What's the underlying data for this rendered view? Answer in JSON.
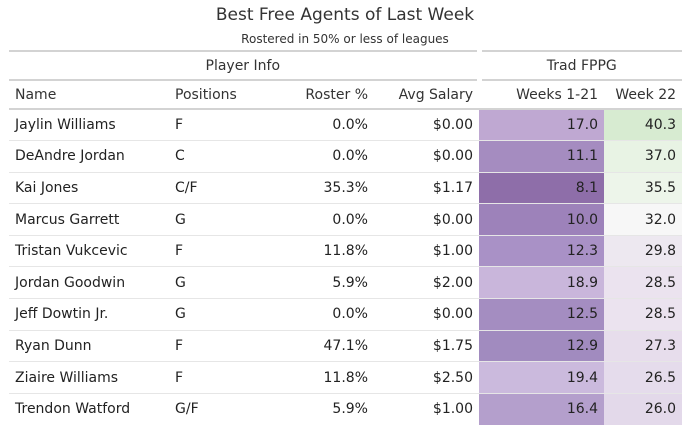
{
  "title": "Best Free Agents of Last Week",
  "subtitle": "Rostered in 50% or less of leagues",
  "spanners": {
    "player_info": "Player Info",
    "trad_fppg": "Trad FPPG"
  },
  "columns": [
    "Name",
    "Positions",
    "Roster %",
    "Avg Salary",
    "Weeks 1-21",
    "Week 22"
  ],
  "rows": [
    {
      "name": "Jaylin Williams",
      "pos": "F",
      "roster": "0.0%",
      "salary": "$0.00",
      "w121": "17.0",
      "w22": "40.3"
    },
    {
      "name": "DeAndre Jordan",
      "pos": "C",
      "roster": "0.0%",
      "salary": "$0.00",
      "w121": "11.1",
      "w22": "37.0"
    },
    {
      "name": "Kai Jones",
      "pos": "C/F",
      "roster": "35.3%",
      "salary": "$1.17",
      "w121": "8.1",
      "w22": "35.5"
    },
    {
      "name": "Marcus Garrett",
      "pos": "G",
      "roster": "0.0%",
      "salary": "$0.00",
      "w121": "10.0",
      "w22": "32.0"
    },
    {
      "name": "Tristan Vukcevic",
      "pos": "F",
      "roster": "11.8%",
      "salary": "$1.00",
      "w121": "12.3",
      "w22": "29.8"
    },
    {
      "name": "Jordan Goodwin",
      "pos": "G",
      "roster": "5.9%",
      "salary": "$2.00",
      "w121": "18.9",
      "w22": "28.5"
    },
    {
      "name": "Jeff Dowtin Jr.",
      "pos": "G",
      "roster": "0.0%",
      "salary": "$0.00",
      "w121": "12.5",
      "w22": "28.5"
    },
    {
      "name": "Ryan Dunn",
      "pos": "F",
      "roster": "47.1%",
      "salary": "$1.75",
      "w121": "12.9",
      "w22": "27.3"
    },
    {
      "name": "Ziaire Williams",
      "pos": "F",
      "roster": "11.8%",
      "salary": "$2.50",
      "w121": "19.4",
      "w22": "26.5"
    },
    {
      "name": "Trendon Watford",
      "pos": "G/F",
      "roster": "5.9%",
      "salary": "$1.00",
      "w121": "16.4",
      "w22": "26.0"
    }
  ],
  "colors": {
    "weeks_1_21": [
      "#bfa8d2",
      "#a58cc0",
      "#8e6ea9",
      "#9d82ba",
      "#a991c6",
      "#c9b6db",
      "#a48dc1",
      "#a18bbf",
      "#cbbadd",
      "#b49fcc"
    ],
    "week_22": [
      "#d7ebd1",
      "#e8f3e4",
      "#edf5ea",
      "#f7f7f7",
      "#ede8f0",
      "#ebe3ef",
      "#ebe3ef",
      "#e7ddec",
      "#e5dcec",
      "#e3d9ea"
    ]
  }
}
